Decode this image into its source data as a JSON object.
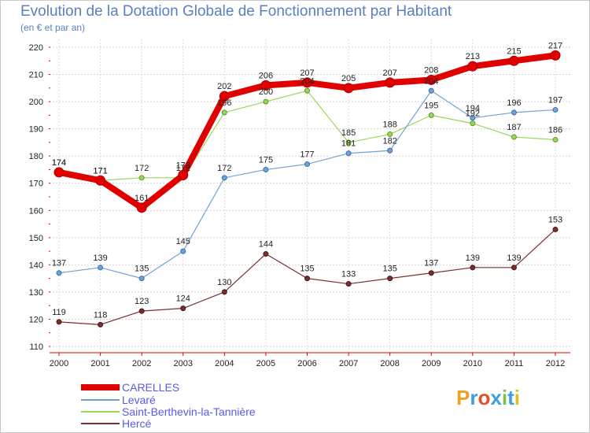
{
  "chart_data": {
    "type": "line",
    "title": "Evolution de la Dotation Globale de Fonctionnement par Habitant",
    "subtitle": "(en € et par an)",
    "xlabel": "",
    "ylabel": "",
    "ylim": [
      110,
      220
    ],
    "yticks": [
      110,
      120,
      130,
      140,
      150,
      160,
      170,
      180,
      190,
      200,
      210,
      220
    ],
    "categories": [
      "2000",
      "2001",
      "2002",
      "2003",
      "2004",
      "2005",
      "2006",
      "2007",
      "2008",
      "2009",
      "2010",
      "2011",
      "2012"
    ],
    "grid": true,
    "legend_position": "bottom-left",
    "series": [
      {
        "name": "CARELLES",
        "color": "#e00000",
        "values": [
          174,
          171,
          161,
          173,
          202,
          206,
          207,
          205,
          207,
          208,
          213,
          215,
          217
        ]
      },
      {
        "name": "Levaré",
        "color": "#6fa3d6",
        "values": [
          137,
          139,
          135,
          145,
          172,
          175,
          177,
          181,
          182,
          204,
          194,
          196,
          197
        ]
      },
      {
        "name": "Saint-Berthevin-la-Tannière",
        "color": "#9ad65a",
        "values": [
          174,
          171,
          172,
          172,
          196,
          200,
          204,
          185,
          188,
          195,
          192,
          187,
          186
        ]
      },
      {
        "name": "Hercé",
        "color": "#7a2e2e",
        "values": [
          119,
          118,
          123,
          124,
          130,
          144,
          135,
          133,
          135,
          137,
          139,
          139,
          153
        ]
      }
    ]
  },
  "brand": {
    "letters": [
      "P",
      "r",
      "o",
      "x",
      "i",
      "t",
      "i"
    ],
    "colors": [
      "#f0a020",
      "#3aa0e0",
      "#e05030",
      "#3aa0e0",
      "#80c040",
      "#3aa0e0",
      "#e0c020"
    ]
  }
}
